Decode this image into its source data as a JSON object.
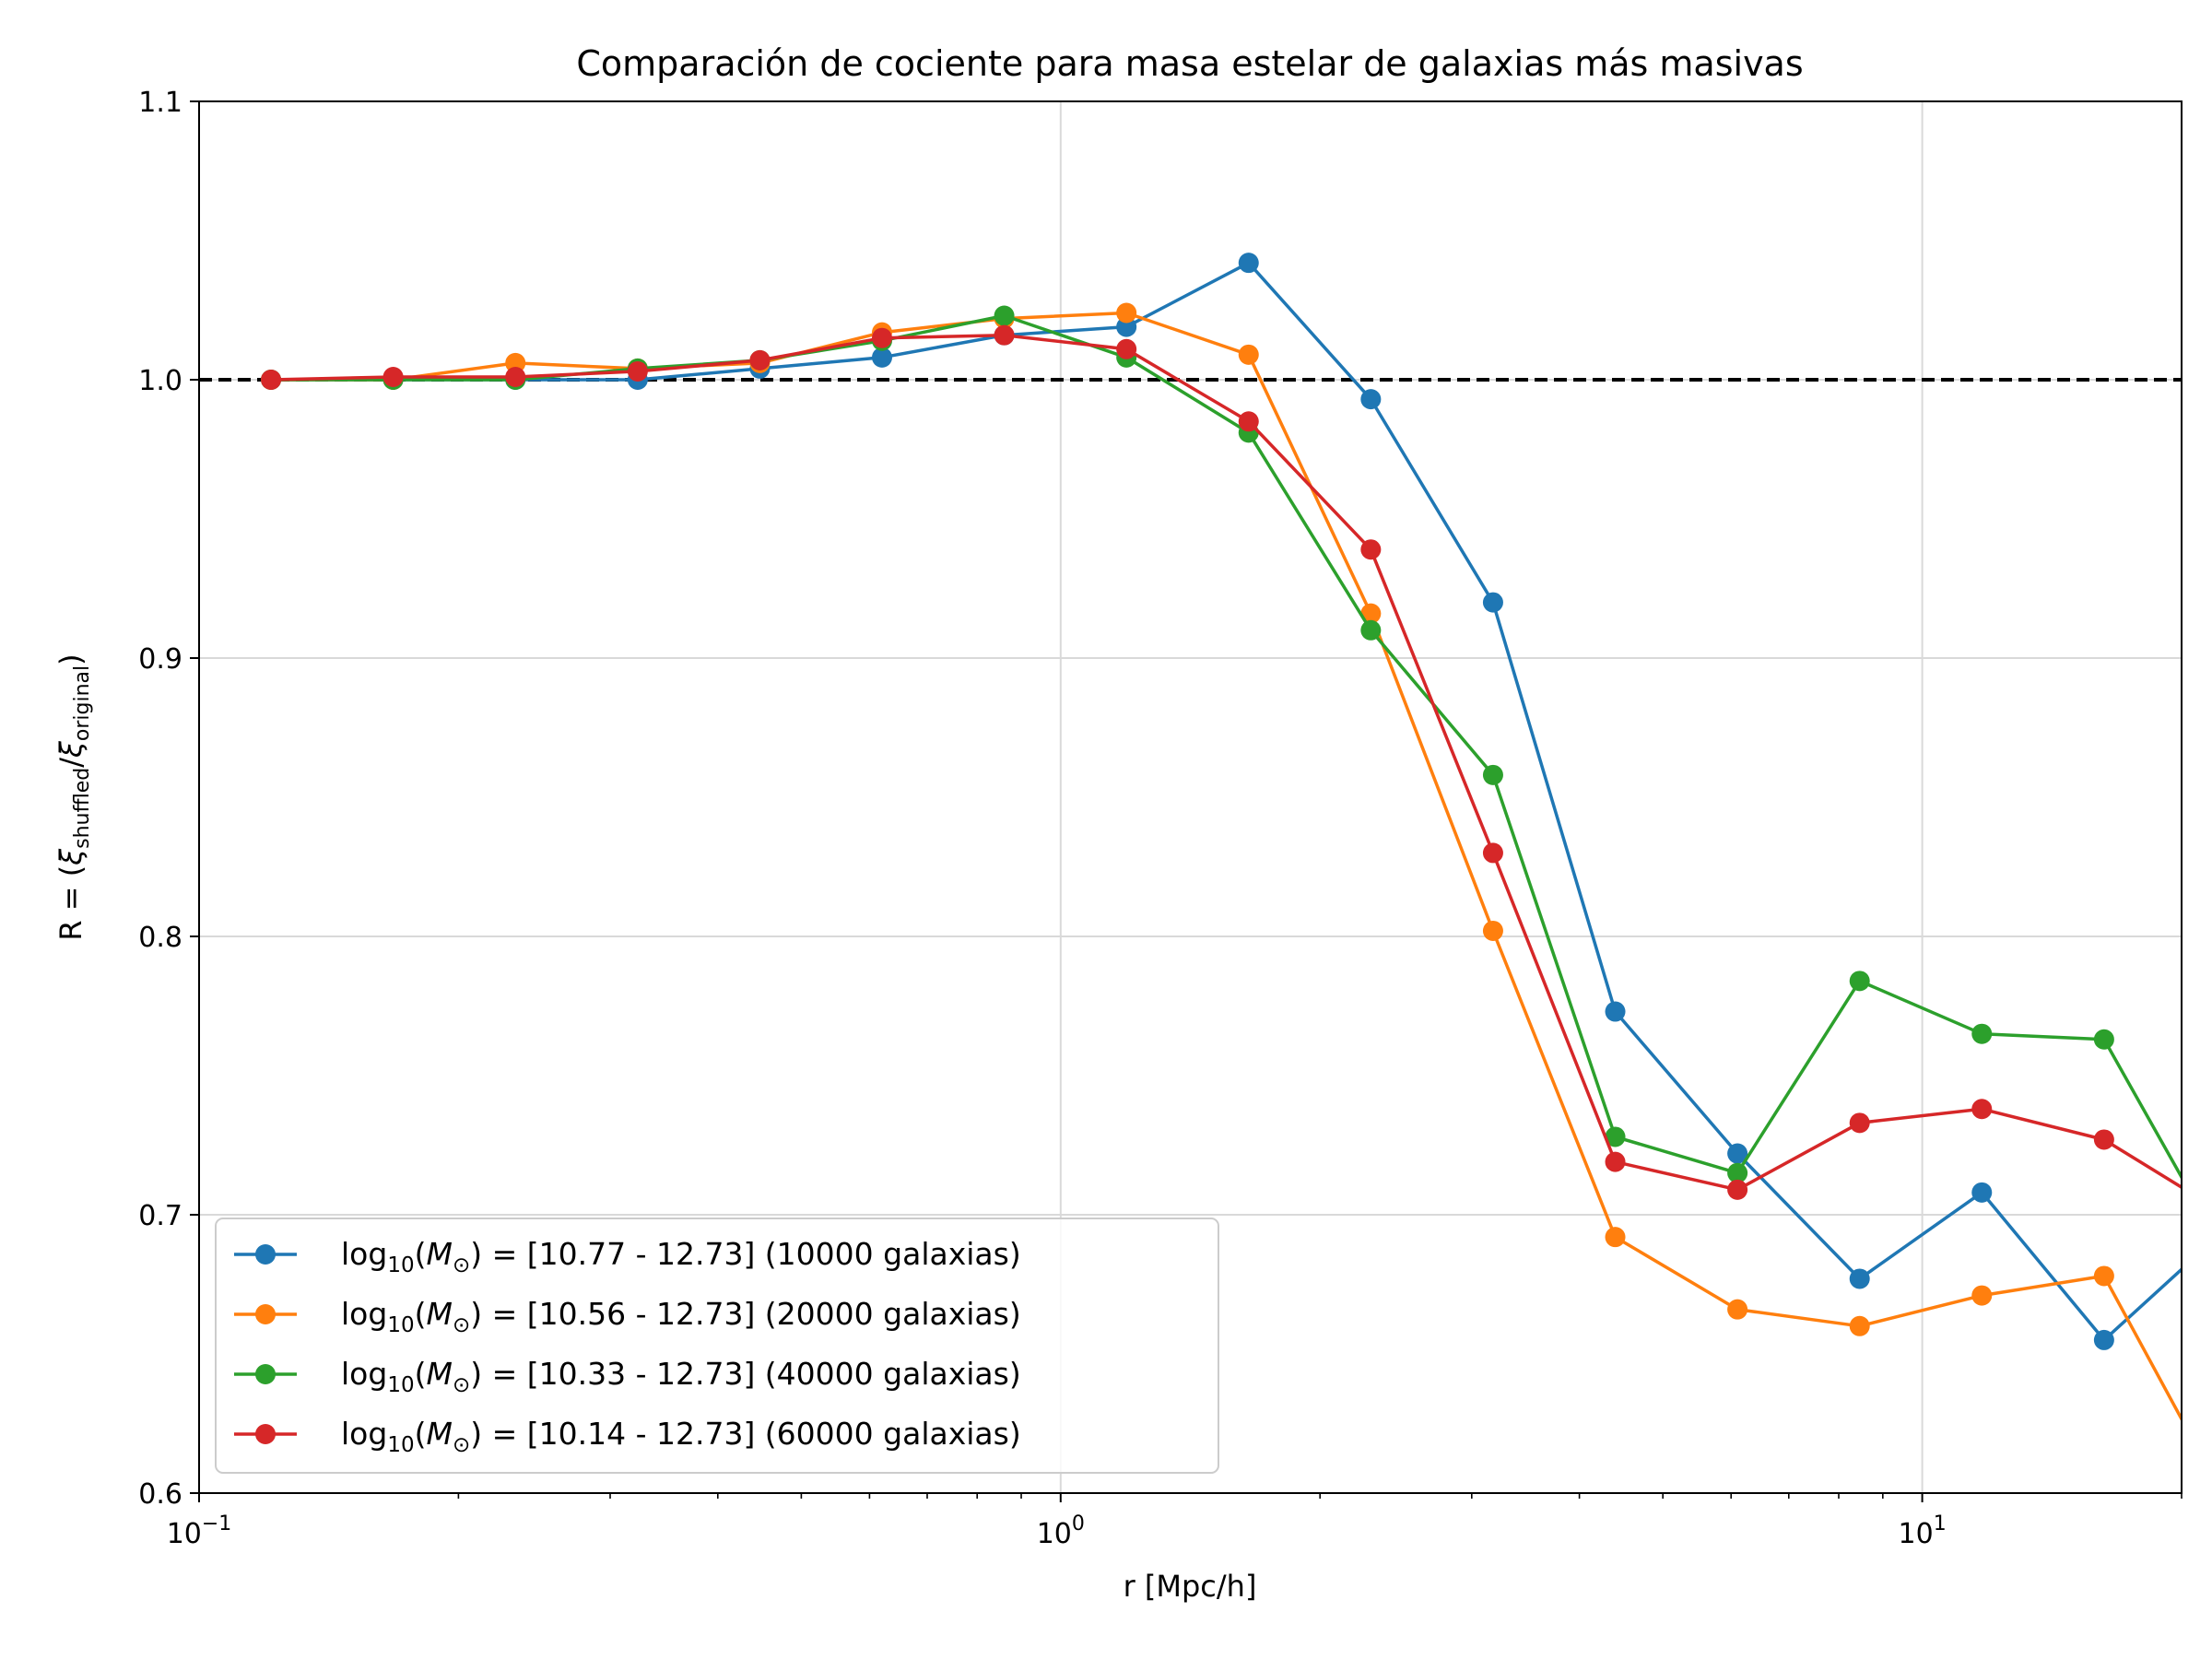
{
  "chart_data": {
    "type": "line",
    "title": "Comparación de cociente para masa estelar de galaxias más masivas",
    "xlabel": "r [Mpc/h]",
    "ylabel": "R = (ξshuffled/ξoriginal)",
    "xscale": "log",
    "xlim": [
      0.1,
      20
    ],
    "ylim": [
      0.6,
      1.1
    ],
    "yticks": [
      "0.6",
      "0.7",
      "0.8",
      "0.9",
      "1.0",
      "1.1"
    ],
    "xticks": [
      "10−1",
      "100",
      "101"
    ],
    "grid": true,
    "legend_position": "lower-left",
    "reference_line": {
      "y": 1.0,
      "style": "dashed",
      "color": "#000000"
    },
    "x": [
      0.1212,
      0.168,
      0.2329,
      0.3229,
      0.4476,
      0.6204,
      0.86,
      1.1922,
      1.6527,
      2.291,
      3.1759,
      4.4025,
      6.1029,
      8.46,
      11.727,
      16.257,
      22.536
    ],
    "series": [
      {
        "name": "log10(M⊙) = [10.77 - 12.73] (10000 galaxias)",
        "color": "#1f77b4",
        "values": [
          1.0,
          1.0,
          1.0,
          1.0,
          1.004,
          1.008,
          1.016,
          1.019,
          1.042,
          0.993,
          0.92,
          0.773,
          0.722,
          0.677,
          0.708,
          0.655,
          0.695
        ]
      },
      {
        "name": "log10(M⊙) = [10.56 - 12.73] (20000 galaxias)",
        "color": "#ff7f0e",
        "values": [
          1.0,
          1.0,
          1.006,
          1.004,
          1.006,
          1.017,
          1.022,
          1.024,
          1.009,
          0.916,
          0.802,
          0.692,
          0.666,
          0.66,
          0.671,
          0.678,
          0.597
        ]
      },
      {
        "name": "log10(M⊙) = [10.33 - 12.73] (40000 galaxias)",
        "color": "#2ca02c",
        "values": [
          1.0,
          1.0,
          1.0,
          1.004,
          1.007,
          1.014,
          1.023,
          1.008,
          0.981,
          0.91,
          0.858,
          0.728,
          0.715,
          0.784,
          0.765,
          0.763,
          0.685
        ]
      },
      {
        "name": "log10(M⊙) = [10.14 - 12.73] (60000 galaxias)",
        "color": "#d62728",
        "values": [
          1.0,
          1.001,
          1.001,
          1.003,
          1.007,
          1.015,
          1.016,
          1.011,
          0.985,
          0.939,
          0.83,
          0.719,
          0.709,
          0.733,
          0.738,
          0.727,
          0.7
        ]
      }
    ],
    "legend": {
      "items": [
        {
          "prefix": "log",
          "sub": "10",
          "mid": "(",
          "var": "M",
          "varsub": "⊙",
          "suffix": ") = [10.77 - 12.73] (10000 galaxias)"
        },
        {
          "prefix": "log",
          "sub": "10",
          "mid": "(",
          "var": "M",
          "varsub": "⊙",
          "suffix": ") = [10.56 - 12.73] (20000 galaxias)"
        },
        {
          "prefix": "log",
          "sub": "10",
          "mid": "(",
          "var": "M",
          "varsub": "⊙",
          "suffix": ") = [10.33 - 12.73] (40000 galaxias)"
        },
        {
          "prefix": "log",
          "sub": "10",
          "mid": "(",
          "var": "M",
          "varsub": "⊙",
          "suffix": ") = [10.14 - 12.73] (60000 galaxias)"
        }
      ]
    },
    "ylabel_parts": {
      "lead": "R = (",
      "xi1": "ξ",
      "sub1": "shuffled",
      "slash": "/",
      "xi2": "ξ",
      "sub2": "original",
      "tail": ")"
    },
    "xtick_parts": [
      {
        "base": "10",
        "exp": "−1"
      },
      {
        "base": "10",
        "exp": "0"
      },
      {
        "base": "10",
        "exp": "1"
      }
    ]
  }
}
